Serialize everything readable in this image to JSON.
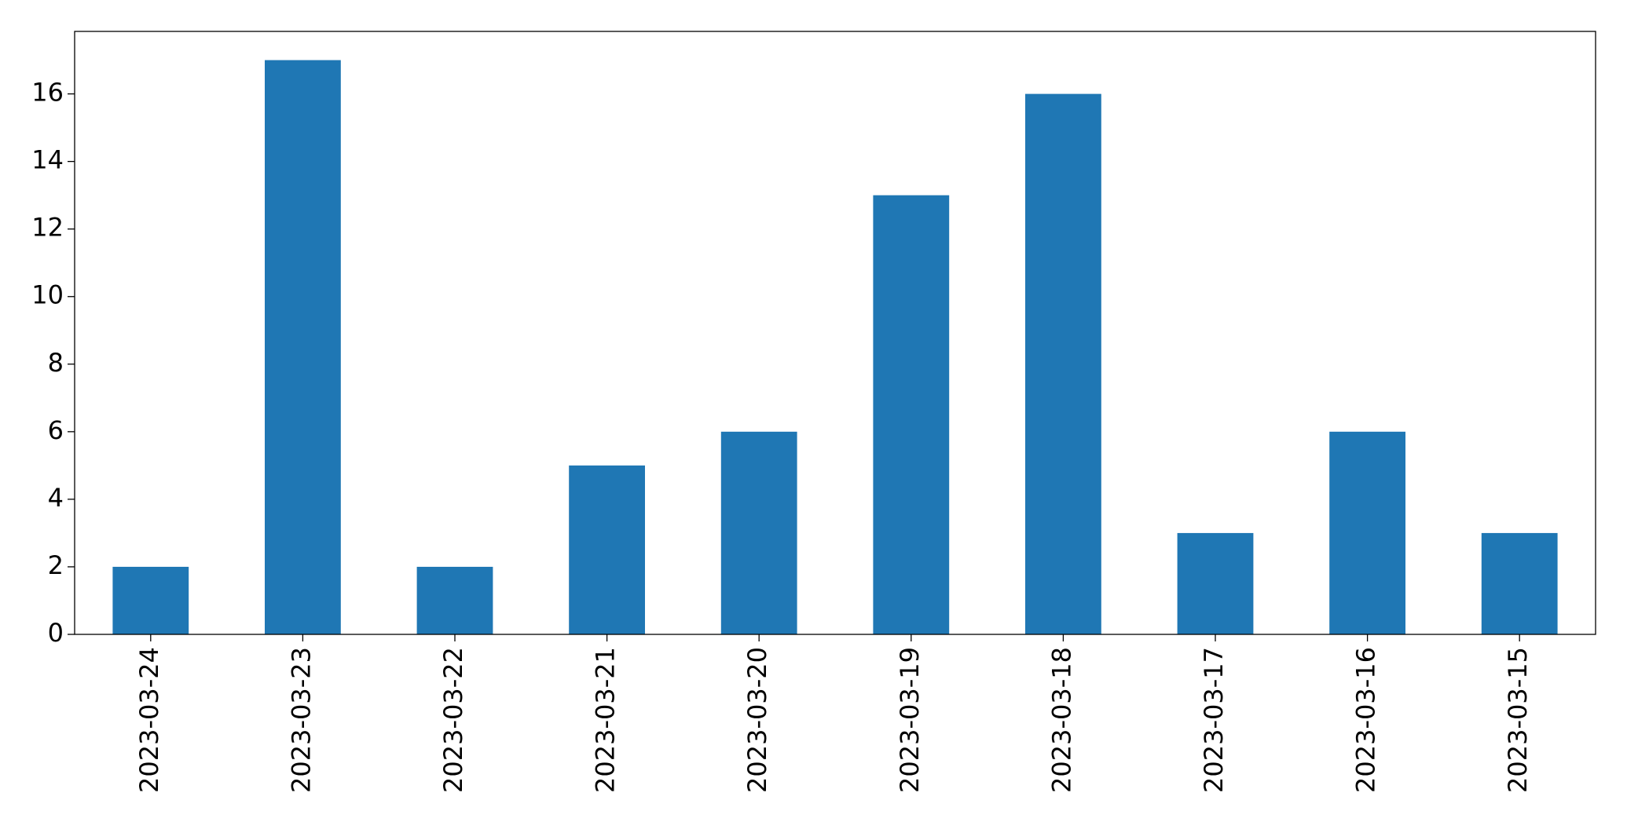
{
  "chart_data": {
    "type": "bar",
    "categories": [
      "2023-03-24",
      "2023-03-23",
      "2023-03-22",
      "2023-03-21",
      "2023-03-20",
      "2023-03-19",
      "2023-03-18",
      "2023-03-17",
      "2023-03-16",
      "2023-03-15"
    ],
    "values": [
      2,
      17,
      2,
      5,
      6,
      13,
      16,
      3,
      6,
      3
    ],
    "color": "#1f77b4",
    "ylim": [
      0,
      17.85
    ],
    "yticks": [
      0,
      2,
      4,
      6,
      8,
      10,
      12,
      14,
      16
    ],
    "grid": false
  }
}
